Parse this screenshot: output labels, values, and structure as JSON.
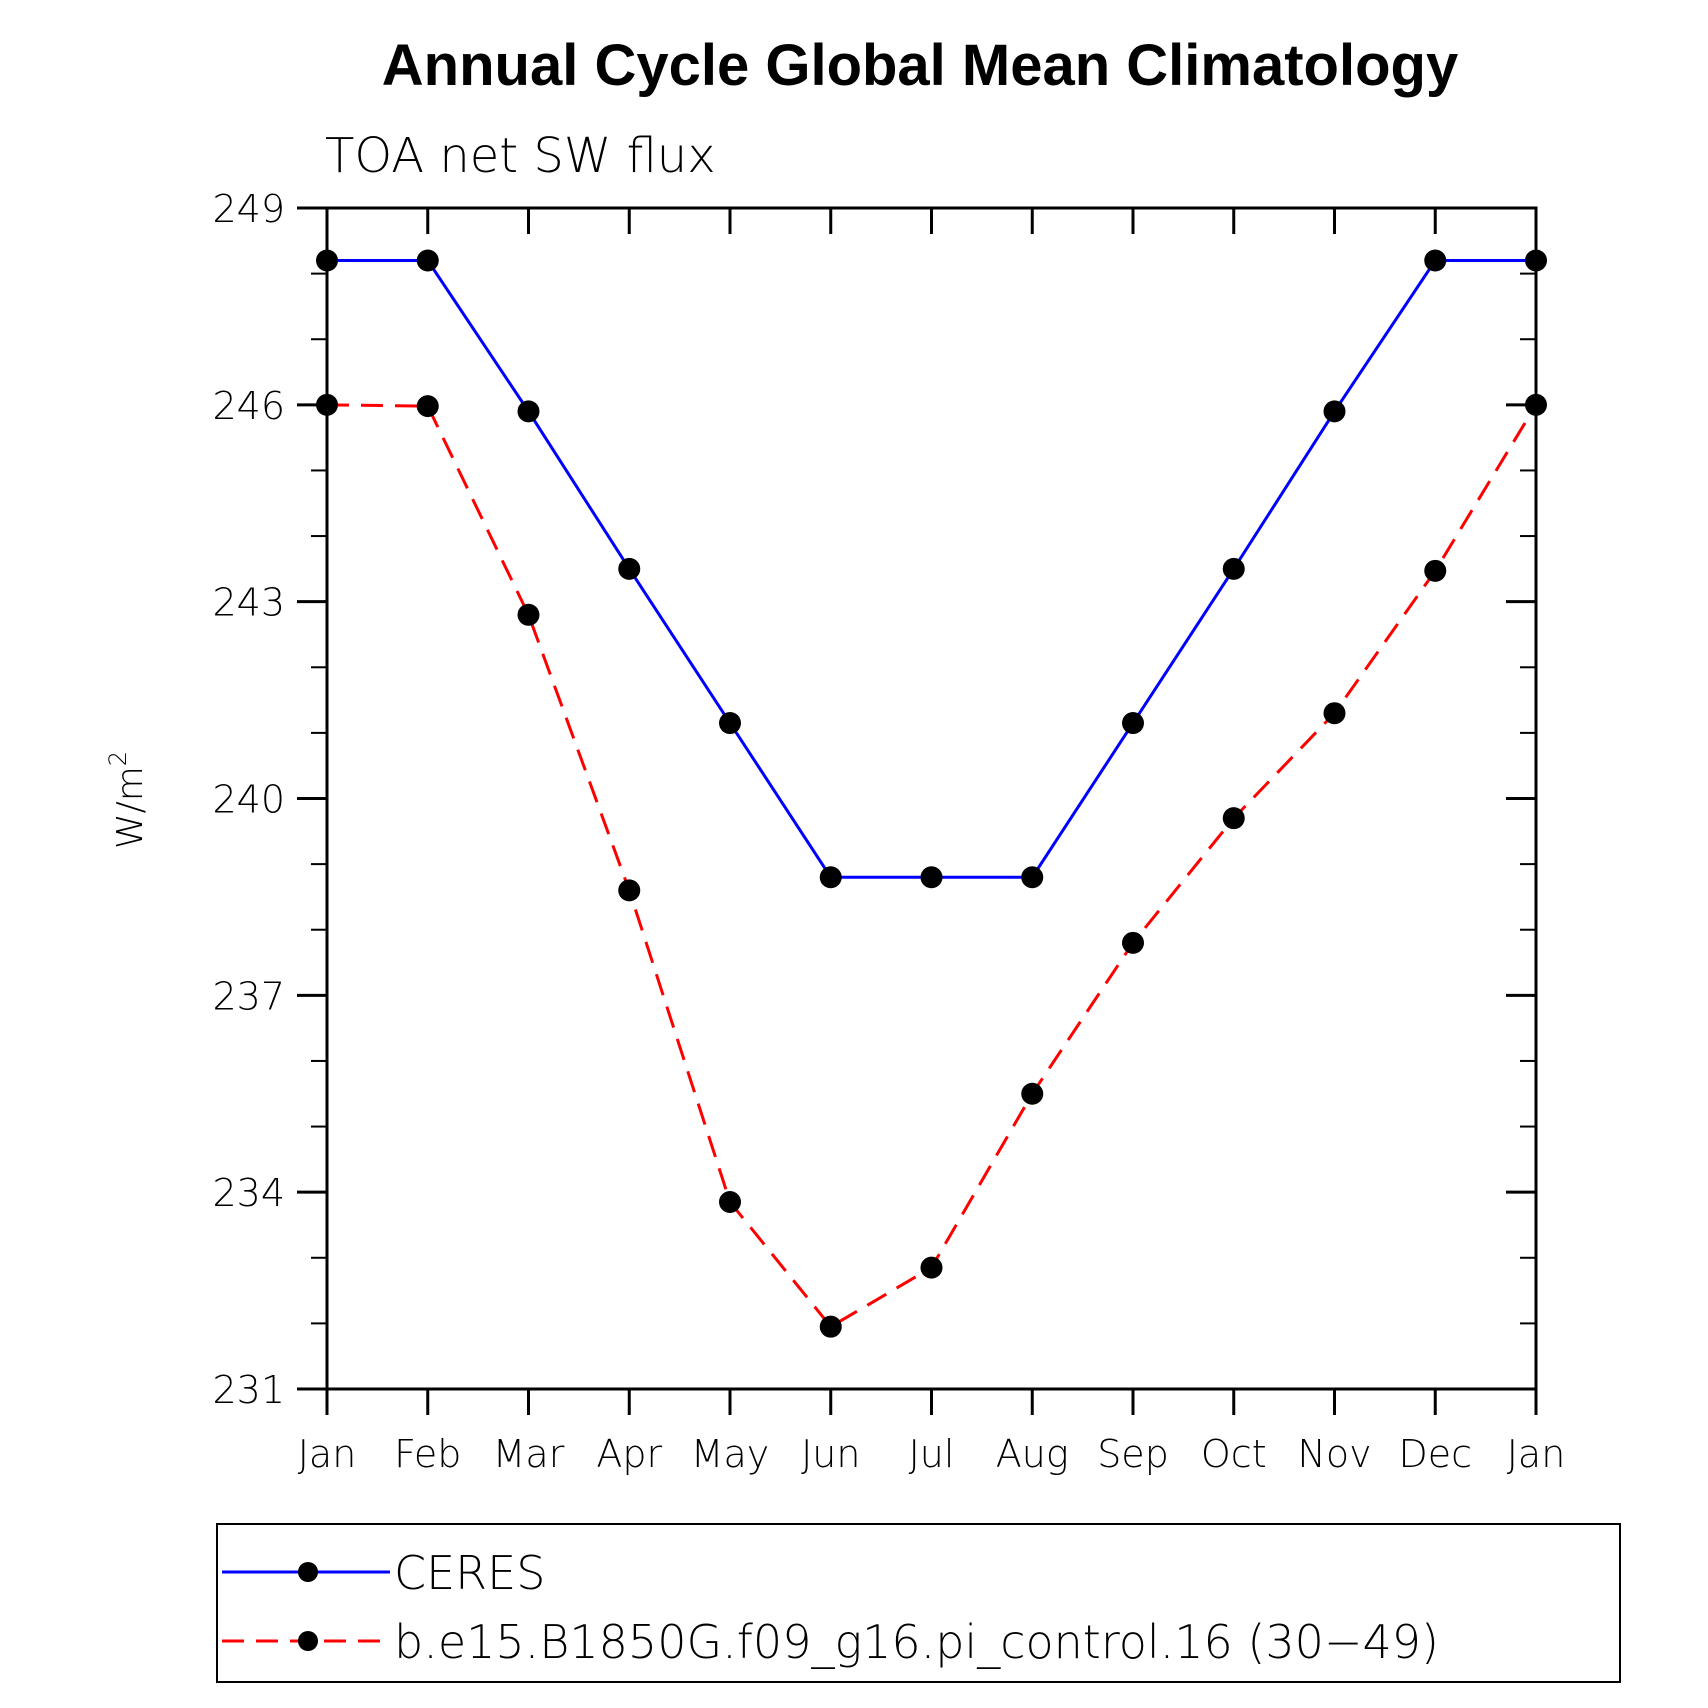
{
  "chart_data": {
    "type": "line",
    "title": "Annual Cycle Global Mean Climatology",
    "subtitle": "TOA net SW flux",
    "ylabel_base": "W/m",
    "ylabel_sup": "2",
    "categories": [
      "Jan",
      "Feb",
      "Mar",
      "Apr",
      "May",
      "Jun",
      "Jul",
      "Aug",
      "Sep",
      "Oct",
      "Nov",
      "Dec",
      "Jan"
    ],
    "ylim": [
      231,
      249
    ],
    "yticks": [
      231,
      234,
      237,
      240,
      243,
      246,
      249
    ],
    "grid": false,
    "legend_position": "bottom",
    "series": [
      {
        "name": "CERES",
        "color": "#0000ff",
        "dash": "solid",
        "values": [
          248.2,
          248.2,
          245.9,
          243.5,
          241.15,
          238.8,
          238.8,
          238.8,
          241.15,
          243.5,
          245.9,
          248.2,
          248.2
        ]
      },
      {
        "name": "b.e15.B1850G.f09_g16.pi_control.16 (30−49)",
        "color": "#ff0000",
        "dash": "dashed",
        "values": [
          246.0,
          245.98,
          242.8,
          238.6,
          233.85,
          231.95,
          232.85,
          235.5,
          237.8,
          239.7,
          241.3,
          243.47,
          246.0
        ]
      }
    ]
  }
}
